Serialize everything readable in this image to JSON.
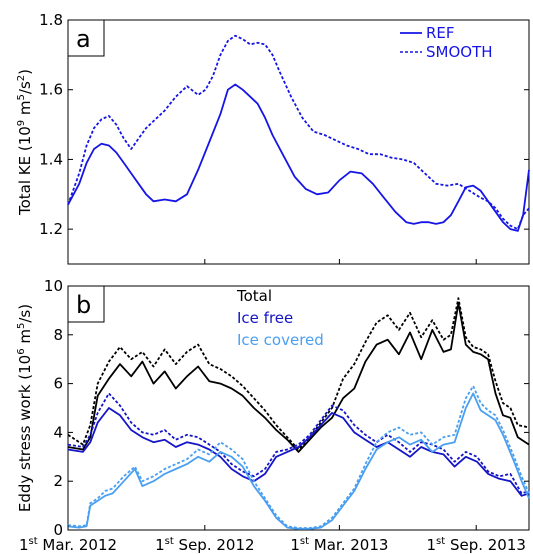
{
  "chart_data": [
    {
      "panel": "a",
      "type": "line",
      "ylabel_prefix": "Total KE (10",
      "ylabel_exp1": "9",
      "ylabel_mid": " m",
      "ylabel_exp2": "5",
      "ylabel_mid2": "/s",
      "ylabel_exp3": "2",
      "ylabel_suffix": ")",
      "ylim": [
        1.1,
        1.8
      ],
      "yticks": [
        "1.2",
        "1.4",
        "1.6",
        "1.8"
      ],
      "ytick_values": [
        1.2,
        1.4,
        1.6,
        1.8
      ],
      "xlim": [
        0,
        620
      ],
      "grid": false,
      "legend_position": "top-right",
      "series": [
        {
          "name": "REF",
          "style": "solid",
          "color": "#1515e6",
          "x": [
            0,
            15,
            25,
            35,
            45,
            55,
            65,
            75,
            85,
            95,
            105,
            115,
            130,
            145,
            160,
            175,
            190,
            205,
            215,
            225,
            235,
            245,
            255,
            265,
            275,
            290,
            305,
            320,
            335,
            350,
            365,
            380,
            395,
            410,
            425,
            440,
            455,
            465,
            475,
            485,
            495,
            505,
            515,
            525,
            535,
            545,
            555,
            565,
            575,
            585,
            595,
            605,
            612,
            620
          ],
          "y": [
            1.27,
            1.33,
            1.39,
            1.43,
            1.445,
            1.44,
            1.42,
            1.39,
            1.36,
            1.33,
            1.3,
            1.28,
            1.285,
            1.28,
            1.3,
            1.37,
            1.45,
            1.53,
            1.6,
            1.615,
            1.6,
            1.58,
            1.56,
            1.52,
            1.47,
            1.41,
            1.35,
            1.315,
            1.3,
            1.305,
            1.34,
            1.365,
            1.36,
            1.33,
            1.29,
            1.25,
            1.22,
            1.215,
            1.22,
            1.22,
            1.215,
            1.22,
            1.24,
            1.28,
            1.32,
            1.325,
            1.31,
            1.28,
            1.25,
            1.22,
            1.2,
            1.195,
            1.24,
            1.37
          ]
        },
        {
          "name": "SMOOTH",
          "style": "dashed",
          "color": "#1515e6",
          "x": [
            0,
            15,
            25,
            35,
            45,
            55,
            65,
            75,
            85,
            95,
            105,
            115,
            130,
            145,
            160,
            175,
            185,
            195,
            205,
            215,
            225,
            235,
            245,
            255,
            265,
            275,
            285,
            300,
            315,
            330,
            345,
            360,
            375,
            390,
            405,
            420,
            435,
            450,
            465,
            480,
            495,
            510,
            525,
            540,
            555,
            565,
            575,
            585,
            595,
            605,
            612,
            620
          ],
          "y": [
            1.27,
            1.36,
            1.44,
            1.49,
            1.515,
            1.525,
            1.5,
            1.46,
            1.43,
            1.46,
            1.49,
            1.51,
            1.54,
            1.58,
            1.61,
            1.585,
            1.6,
            1.64,
            1.7,
            1.74,
            1.755,
            1.745,
            1.73,
            1.735,
            1.73,
            1.7,
            1.65,
            1.58,
            1.52,
            1.48,
            1.47,
            1.455,
            1.44,
            1.43,
            1.415,
            1.415,
            1.405,
            1.4,
            1.39,
            1.36,
            1.33,
            1.325,
            1.33,
            1.31,
            1.29,
            1.28,
            1.26,
            1.23,
            1.21,
            1.2,
            1.24,
            1.26
          ]
        }
      ]
    },
    {
      "panel": "b",
      "type": "line",
      "ylabel_prefix": "Eddy stress work (10",
      "ylabel_exp1": "6",
      "ylabel_mid": " m",
      "ylabel_exp2": "5",
      "ylabel_suffix": "/s)",
      "ylim": [
        0,
        10
      ],
      "yticks": [
        "0",
        "2",
        "4",
        "6",
        "8",
        "10"
      ],
      "ytick_values": [
        0,
        2,
        4,
        6,
        8,
        10
      ],
      "xlim": [
        0,
        620
      ],
      "xticks": [
        {
          "sup": "st",
          "pre": "1",
          "post": " Mar. 2012",
          "x": 0
        },
        {
          "sup": "st",
          "pre": "1",
          "post": " Sep. 2012",
          "x": 184
        },
        {
          "sup": "st",
          "pre": "1",
          "post": " Mar. 2013",
          "x": 365
        },
        {
          "sup": "st",
          "pre": "1",
          "post": " Sep. 2013",
          "x": 549
        }
      ],
      "grid": false,
      "legend_position": "top-center",
      "legend": [
        {
          "name": "Total",
          "color": "#000000"
        },
        {
          "name": "Ice free",
          "color": "#1515c8"
        },
        {
          "name": "Ice covered",
          "color": "#4a9ff0"
        }
      ],
      "series": [
        {
          "name": "Total",
          "group": "REF",
          "style": "solid",
          "color": "#000000",
          "x": [
            0,
            20,
            30,
            40,
            55,
            70,
            85,
            100,
            115,
            130,
            145,
            160,
            175,
            190,
            205,
            220,
            235,
            250,
            265,
            280,
            295,
            310,
            325,
            340,
            355,
            370,
            385,
            400,
            415,
            430,
            445,
            460,
            475,
            490,
            505,
            515,
            525,
            535,
            545,
            555,
            565,
            575,
            585,
            595,
            605,
            620
          ],
          "y": [
            3.4,
            3.3,
            3.8,
            5.5,
            6.2,
            6.8,
            6.3,
            6.9,
            6.0,
            6.5,
            5.8,
            6.3,
            6.7,
            6.1,
            6.0,
            5.8,
            5.5,
            5.0,
            4.6,
            4.1,
            3.7,
            3.2,
            3.7,
            4.2,
            4.6,
            5.4,
            5.8,
            6.9,
            7.6,
            7.8,
            7.2,
            8.1,
            7.0,
            8.2,
            7.3,
            7.4,
            9.3,
            7.6,
            7.3,
            7.2,
            7.0,
            5.6,
            4.7,
            4.6,
            3.8,
            3.5
          ]
        },
        {
          "name": "Total",
          "group": "SMOOTH",
          "style": "dashed",
          "color": "#000000",
          "x": [
            0,
            20,
            30,
            40,
            55,
            70,
            85,
            100,
            115,
            130,
            145,
            160,
            175,
            190,
            205,
            220,
            235,
            250,
            265,
            280,
            295,
            310,
            325,
            340,
            355,
            370,
            385,
            400,
            415,
            430,
            445,
            460,
            475,
            490,
            505,
            515,
            525,
            535,
            545,
            555,
            565,
            575,
            585,
            595,
            605,
            620
          ],
          "y": [
            3.9,
            3.5,
            4.3,
            6.0,
            6.9,
            7.5,
            7.0,
            7.3,
            6.7,
            7.4,
            6.8,
            7.3,
            7.6,
            6.8,
            6.6,
            6.3,
            5.9,
            5.4,
            4.9,
            4.3,
            3.8,
            3.3,
            3.8,
            4.4,
            5.0,
            6.2,
            6.8,
            7.7,
            8.5,
            8.8,
            8.2,
            8.9,
            7.9,
            8.6,
            7.8,
            8.0,
            9.5,
            7.9,
            7.5,
            7.4,
            7.2,
            6.1,
            5.2,
            5.0,
            4.3,
            4.2
          ]
        },
        {
          "name": "Ice free",
          "group": "REF",
          "style": "solid",
          "color": "#1515c8",
          "x": [
            0,
            20,
            30,
            40,
            55,
            70,
            85,
            100,
            115,
            130,
            145,
            160,
            175,
            190,
            205,
            220,
            235,
            250,
            265,
            280,
            295,
            310,
            325,
            340,
            355,
            370,
            385,
            400,
            415,
            430,
            445,
            460,
            475,
            490,
            505,
            520,
            535,
            550,
            565,
            580,
            595,
            610,
            620
          ],
          "y": [
            3.3,
            3.2,
            3.6,
            4.4,
            5.0,
            4.7,
            4.1,
            3.8,
            3.6,
            3.7,
            3.4,
            3.6,
            3.5,
            3.3,
            3.0,
            2.5,
            2.2,
            2.0,
            2.3,
            3.0,
            3.2,
            3.4,
            3.8,
            4.3,
            4.8,
            4.6,
            4.0,
            3.7,
            3.4,
            3.6,
            3.3,
            3.0,
            3.4,
            3.2,
            3.1,
            2.6,
            3.0,
            2.8,
            2.3,
            2.1,
            2.0,
            1.4,
            1.5
          ]
        },
        {
          "name": "Ice free",
          "group": "SMOOTH",
          "style": "dashed",
          "color": "#1515c8",
          "x": [
            0,
            20,
            30,
            40,
            55,
            70,
            85,
            100,
            115,
            130,
            145,
            160,
            175,
            190,
            205,
            220,
            235,
            250,
            265,
            280,
            295,
            310,
            325,
            340,
            355,
            370,
            385,
            400,
            415,
            430,
            445,
            460,
            475,
            490,
            505,
            520,
            535,
            550,
            565,
            580,
            595,
            610,
            620
          ],
          "y": [
            3.5,
            3.4,
            3.9,
            4.8,
            5.6,
            5.1,
            4.4,
            4.0,
            3.9,
            4.1,
            3.7,
            3.9,
            3.8,
            3.5,
            3.2,
            2.7,
            2.4,
            2.2,
            2.5,
            3.2,
            3.3,
            3.5,
            3.9,
            4.5,
            5.1,
            4.9,
            4.3,
            3.9,
            3.6,
            3.9,
            3.6,
            3.2,
            3.6,
            3.5,
            3.3,
            2.8,
            3.2,
            3.0,
            2.4,
            2.2,
            2.3,
            1.5,
            1.6
          ]
        },
        {
          "name": "Ice covered",
          "group": "REF",
          "style": "solid",
          "color": "#4a9ff0",
          "x": [
            0,
            15,
            25,
            30,
            40,
            50,
            60,
            75,
            90,
            100,
            115,
            130,
            145,
            160,
            175,
            190,
            205,
            220,
            235,
            250,
            265,
            280,
            295,
            310,
            325,
            340,
            355,
            370,
            385,
            400,
            415,
            430,
            445,
            460,
            475,
            490,
            505,
            520,
            535,
            545,
            555,
            565,
            575,
            585,
            600,
            610,
            620
          ],
          "y": [
            0.15,
            0.1,
            0.15,
            1.0,
            1.2,
            1.4,
            1.5,
            2.0,
            2.5,
            1.8,
            2.0,
            2.3,
            2.5,
            2.7,
            3.0,
            2.8,
            3.2,
            3.0,
            2.6,
            1.8,
            1.2,
            0.5,
            0.1,
            0.05,
            0.05,
            0.1,
            0.4,
            1.0,
            1.6,
            2.5,
            3.3,
            3.6,
            3.8,
            3.5,
            3.7,
            3.2,
            3.5,
            3.6,
            5.0,
            5.6,
            4.9,
            4.7,
            4.5,
            3.9,
            2.8,
            2.0,
            1.3
          ]
        },
        {
          "name": "Ice covered",
          "group": "SMOOTH",
          "style": "dashed",
          "color": "#4a9ff0",
          "x": [
            0,
            15,
            25,
            30,
            40,
            50,
            60,
            75,
            90,
            100,
            115,
            130,
            145,
            160,
            175,
            190,
            205,
            220,
            235,
            250,
            265,
            280,
            295,
            310,
            325,
            340,
            355,
            370,
            385,
            400,
            415,
            430,
            445,
            460,
            475,
            490,
            505,
            520,
            535,
            545,
            555,
            565,
            575,
            585,
            600,
            610,
            620
          ],
          "y": [
            0.2,
            0.15,
            0.2,
            1.1,
            1.3,
            1.6,
            1.7,
            2.2,
            2.6,
            2.0,
            2.2,
            2.5,
            2.7,
            2.9,
            3.3,
            3.1,
            3.6,
            3.3,
            2.9,
            2.0,
            1.3,
            0.6,
            0.15,
            0.08,
            0.08,
            0.15,
            0.5,
            1.1,
            1.7,
            2.7,
            3.6,
            4.0,
            4.2,
            3.9,
            4.0,
            3.5,
            3.8,
            3.9,
            5.4,
            5.9,
            5.2,
            4.9,
            4.7,
            4.1,
            3.0,
            2.2,
            1.5
          ]
        }
      ]
    }
  ],
  "panel_a": {
    "letter": "a",
    "legend": [
      {
        "name": "REF",
        "style": "solid"
      },
      {
        "name": "SMOOTH",
        "style": "dashed"
      }
    ]
  },
  "panel_b": {
    "letter": "b"
  },
  "colors": {
    "ref_blue": "#1515e6",
    "total": "#000000",
    "ice_free": "#1515c8",
    "ice_covered": "#4a9ff0"
  }
}
